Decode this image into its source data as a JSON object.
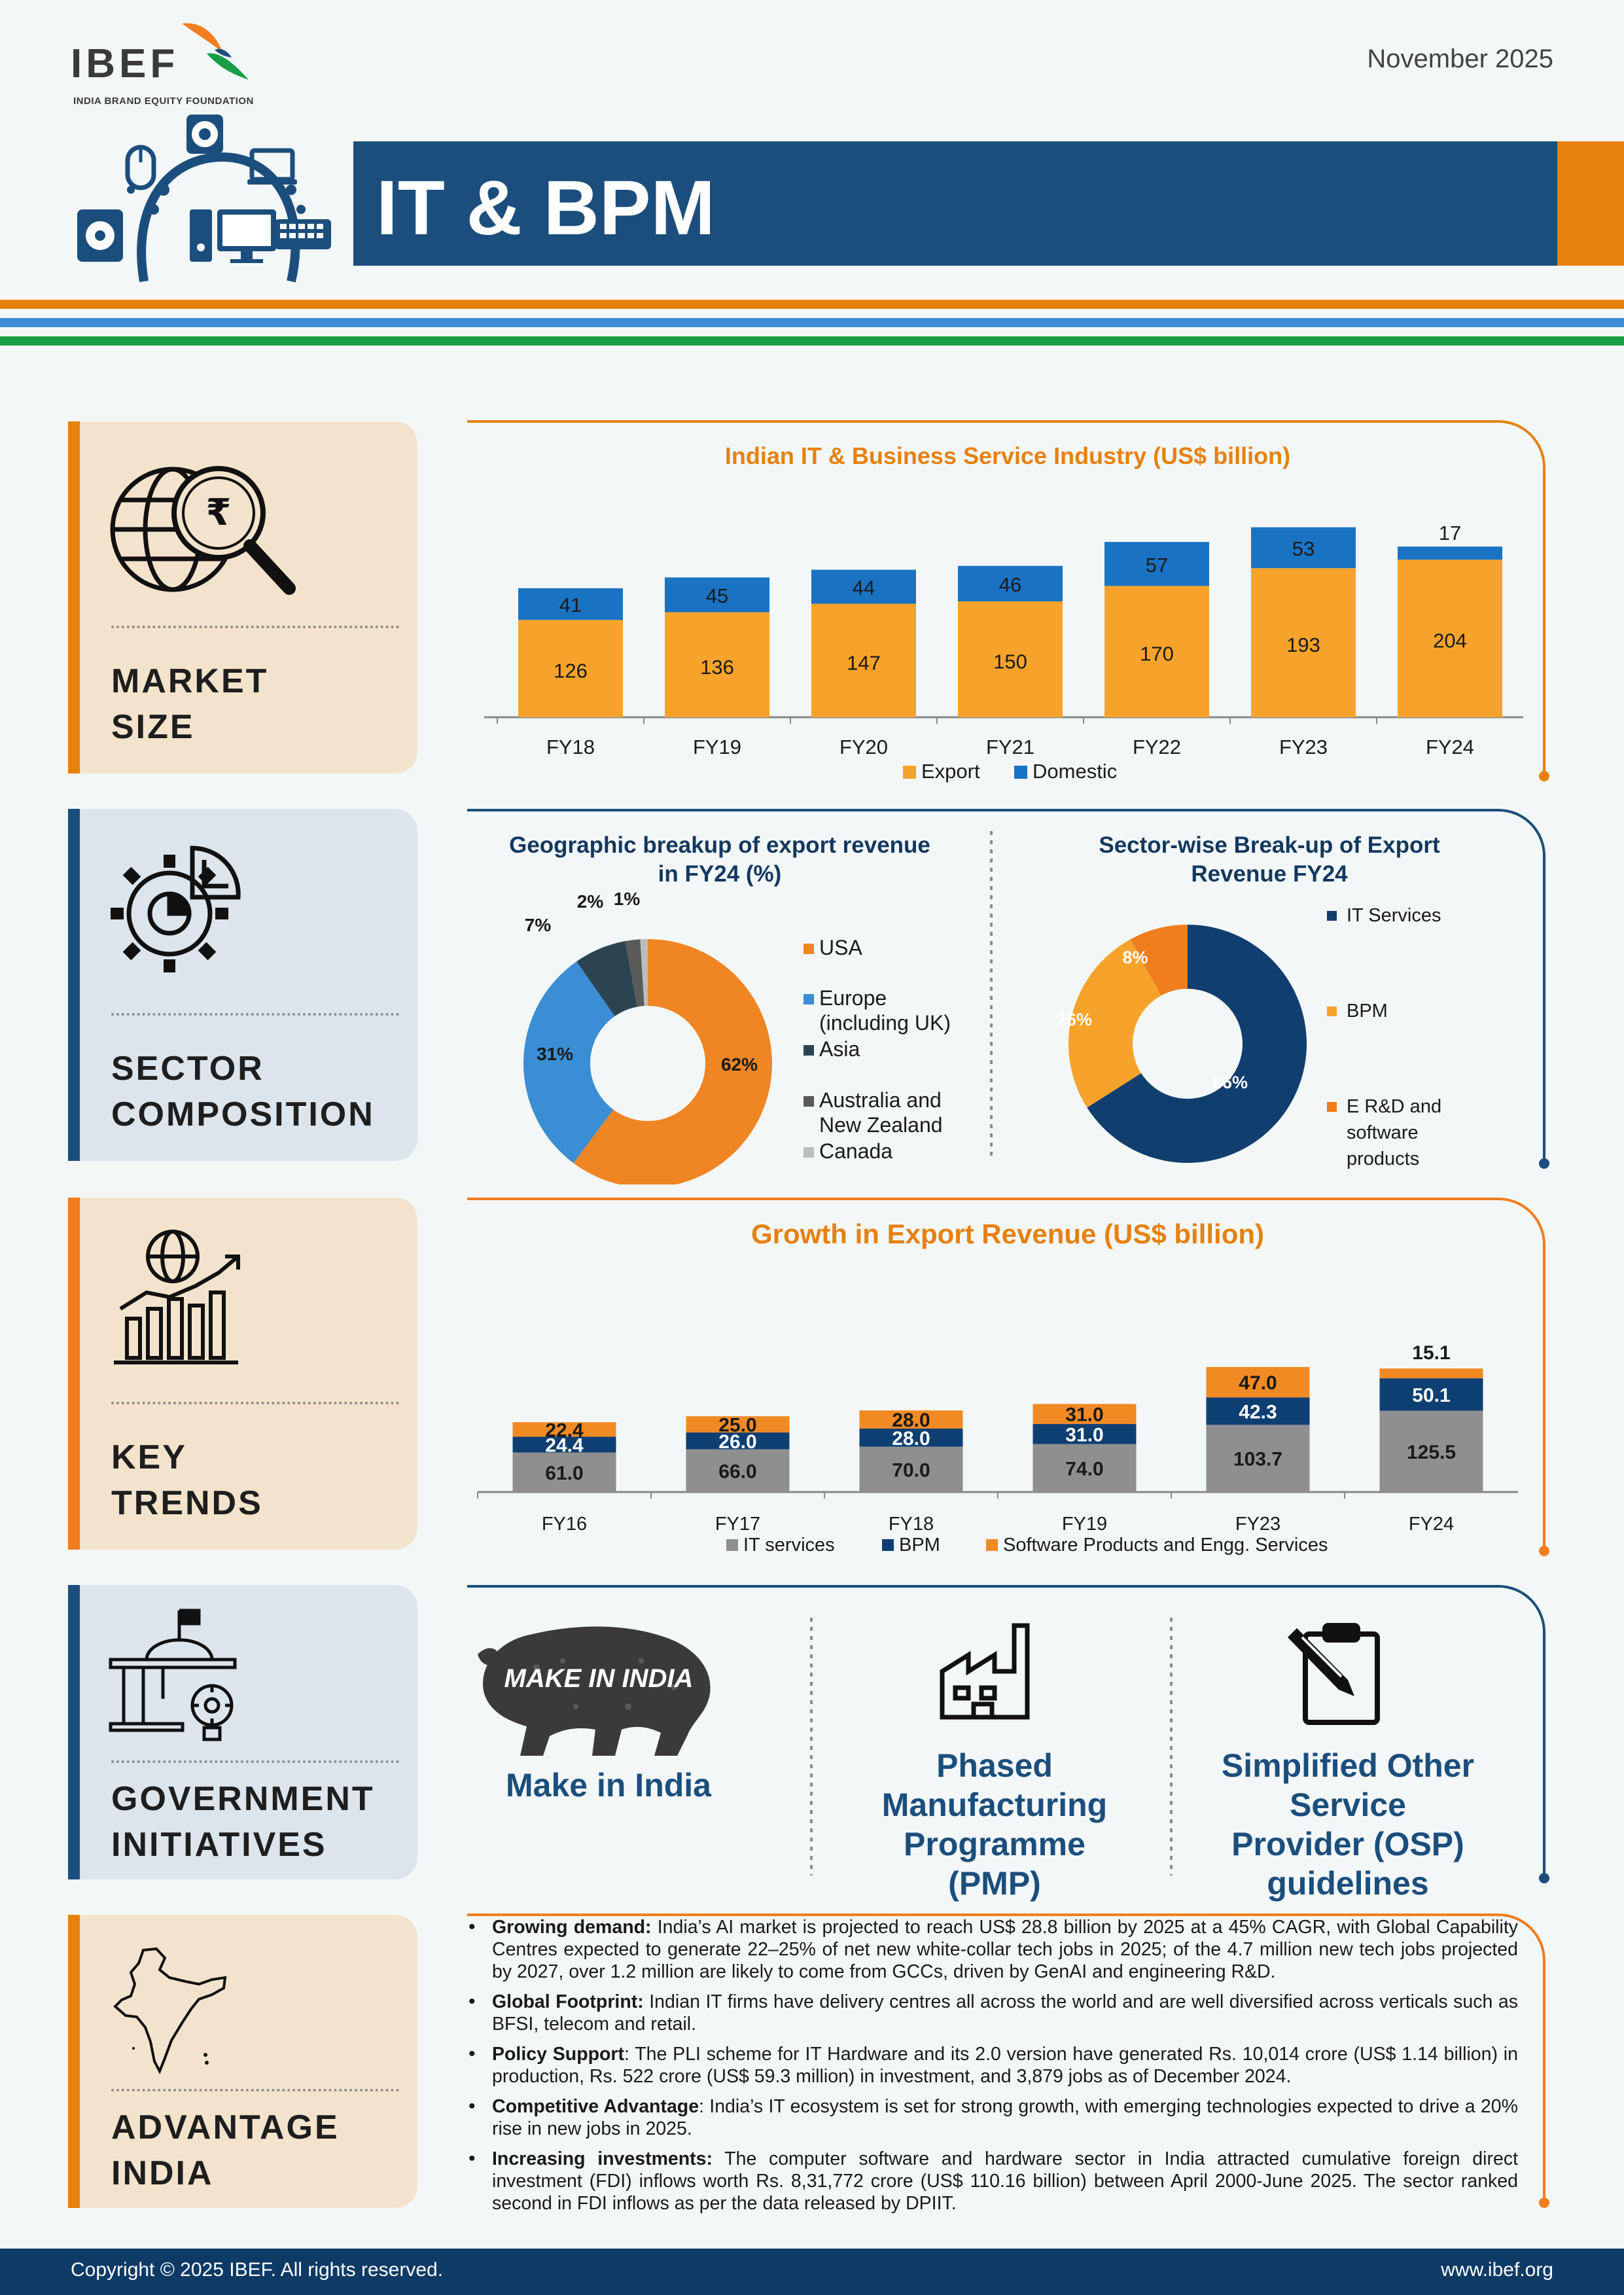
{
  "header": {
    "logo_text": "IBEF",
    "logo_subtitle": "INDIA BRAND EQUITY FOUNDATION",
    "date": "November 2025",
    "title": "IT & BPM"
  },
  "colors": {
    "navy": "#1b4e7c",
    "orange": "#e6810f",
    "bar_orange": "#f7a32b",
    "bar_blue": "#1a73c2",
    "green": "#1a9e45",
    "grey": "#8f8f8f"
  },
  "sections": {
    "market_size": {
      "line1": "MARKET",
      "line2": "SIZE",
      "icon": "globe-rupee-magnifier-icon"
    },
    "sector_composition": {
      "line1": "SECTOR",
      "line2": "COMPOSITION",
      "icon": "gear-pie-icon"
    },
    "key_trends": {
      "line1": "KEY",
      "line2": "TRENDS",
      "icon": "globe-bar-growth-icon"
    },
    "government_initiatives": {
      "line1": "GOVERNMENT",
      "line2": "INITIATIVES",
      "icon": "government-building-bulb-icon"
    },
    "advantage_india": {
      "line1": "ADVANTAGE",
      "line2": "INDIA",
      "icon": "india-map-icon"
    }
  },
  "chart_data": [
    {
      "id": "industry",
      "type": "bar",
      "stacked": true,
      "title": "Indian IT & Business Service Industry (US$ billion)",
      "categories": [
        "FY18",
        "FY19",
        "FY20",
        "FY21",
        "FY22",
        "FY23",
        "FY24"
      ],
      "series": [
        {
          "name": "Export",
          "color": "#f7a32b",
          "values": [
            126,
            136,
            147,
            150,
            170,
            193,
            204
          ]
        },
        {
          "name": "Domestic",
          "color": "#1a73c2",
          "values": [
            41,
            45,
            44,
            46,
            57,
            53,
            17
          ]
        }
      ],
      "legend": "bottom",
      "grid": false
    },
    {
      "id": "geo",
      "type": "pie",
      "donut": true,
      "title": "Geographic breakup of export revenue in FY24 (%)",
      "slices": [
        {
          "name": "USA",
          "value": 62,
          "label": "62%",
          "color": "#f08523"
        },
        {
          "name": "Europe (including UK)",
          "value": 31,
          "label": "31%",
          "color": "#3b8ed3"
        },
        {
          "name": "Asia",
          "value": 7,
          "label": "7%",
          "color": "#2b4452"
        },
        {
          "name": "Australia and New Zealand",
          "value": 2,
          "label": "2%",
          "color": "#5a5a5a"
        },
        {
          "name": "Canada",
          "value": 1,
          "label": "1%",
          "color": "#bdbdbd"
        }
      ],
      "legend": "right"
    },
    {
      "id": "sector",
      "type": "pie",
      "donut": true,
      "title": "Sector-wise Break-up of Export Revenue FY24",
      "slices": [
        {
          "name": "IT Services",
          "value": 66,
          "label": "66%",
          "color": "#103e6e"
        },
        {
          "name": "BPM",
          "value": 26,
          "label": "26%",
          "color": "#f7a32b"
        },
        {
          "name": "E R&D and software products",
          "value": 8,
          "label": "8%",
          "color": "#f07d1e"
        }
      ],
      "legend": "right"
    },
    {
      "id": "growth",
      "type": "bar",
      "stacked": true,
      "title": "Growth in Export Revenue (US$ billion)",
      "categories": [
        "FY16",
        "FY17",
        "FY18",
        "FY19",
        "FY23",
        "FY24"
      ],
      "series": [
        {
          "name": "IT services",
          "color": "#8f8f8f",
          "values": [
            61.0,
            66.0,
            70.0,
            74.0,
            103.7,
            125.5
          ]
        },
        {
          "name": "BPM",
          "color": "#0e3f73",
          "values": [
            24.4,
            26.0,
            28.0,
            31.0,
            42.3,
            50.1
          ]
        },
        {
          "name": "Software Products and Engg. Services",
          "color": "#f28a24",
          "values": [
            22.4,
            25.0,
            28.0,
            31.0,
            47.0,
            15.1
          ]
        }
      ],
      "legend": "bottom",
      "grid": false
    }
  ],
  "geo_legend": {
    "usa": "USA",
    "europe_1": "Europe",
    "europe_2": "(including UK)",
    "asia": "Asia",
    "anz_1": "Australia and",
    "anz_2": "New Zealand",
    "canada": "Canada"
  },
  "sector_legend": {
    "it": "IT Services",
    "bpm": "BPM",
    "erd_1": "E R&D and",
    "erd_2": "software",
    "erd_3": "products"
  },
  "geo_title_1": "Geographic breakup of export revenue",
  "geo_title_2": "in FY24 (%)",
  "sector_title_1": "Sector-wise Break-up of Export",
  "sector_title_2": "Revenue FY24",
  "initiatives": {
    "make_in_india": {
      "title": "Make in India",
      "badge": "MAKE IN INDIA",
      "icon": "lion-logo-icon"
    },
    "pmp": {
      "line1": "Phased",
      "line2": "Manufacturing",
      "line3": "Programme",
      "line4": "(PMP)",
      "icon": "factory-icon"
    },
    "osp": {
      "line1": "Simplified Other",
      "line2": "Service",
      "line3": "Provider (OSP)",
      "line4": "guidelines",
      "icon": "clipboard-pen-icon"
    }
  },
  "advantages": [
    {
      "lead": "Growing demand:",
      "text": " India’s AI market is projected to reach US$ 28.8 billion by 2025 at a 45% CAGR, with Global Capability Centres expected to generate 22–25% of net new white-collar tech jobs in 2025; of the 4.7 million new tech jobs projected by 2027, over 1.2 million are likely to come from GCCs, driven by GenAI and engineering R&D."
    },
    {
      "lead": "Global Footprint:",
      "text": " Indian IT firms have delivery centres all across the world and are well diversified across verticals such as BFSI, telecom and retail."
    },
    {
      "lead": "Policy Support",
      "text": ": The PLI scheme for IT Hardware and its 2.0 version have generated Rs. 10,014 crore (US$ 1.14 billion) in production, Rs. 522 crore (US$ 59.3 million) in investment, and 3,879 jobs as of December 2024."
    },
    {
      "lead": "Competitive Advantage",
      "text": ": India’s IT ecosystem is set for strong growth, with emerging technologies expected to drive a 20% rise in new jobs in 2025."
    },
    {
      "lead": "Increasing investments:",
      "text": "  The computer software and hardware sector in India attracted cumulative foreign direct investment (FDI) inflows worth Rs. 8,31,772 crore (US$ 110.16 billion) between April 2000-June 2025. The sector ranked second in FDI inflows as per the data released by DPIIT."
    }
  ],
  "footer": {
    "copyright": "Copyright © 2025 IBEF. All rights reserved.",
    "website": "www.ibef.org"
  }
}
